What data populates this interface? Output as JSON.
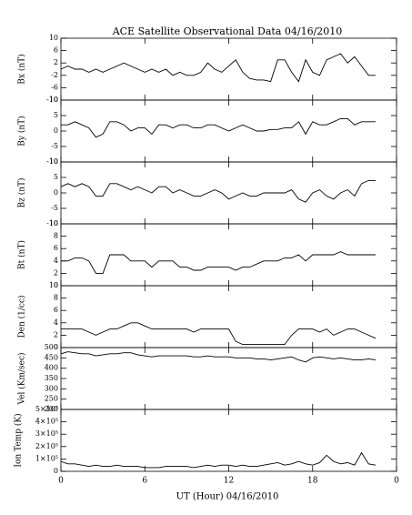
{
  "chart_data": [
    {
      "type": "line",
      "title": "ACE Satellite Observational Data   04/16/2010",
      "ylabel": "Bx (nT)",
      "color": "#000000",
      "x": [
        0,
        0.5,
        1,
        1.5,
        2,
        2.5,
        3,
        3.5,
        4,
        4.5,
        5,
        5.5,
        6,
        6.5,
        7,
        7.5,
        8,
        8.5,
        9,
        9.5,
        10,
        10.5,
        11,
        11.5,
        12,
        12.5,
        13,
        13.5,
        14,
        14.5,
        15,
        15.5,
        16,
        16.5,
        17,
        17.5,
        18,
        18.5,
        19,
        19.5,
        20,
        20.5,
        21,
        21.5,
        22,
        22.5
      ],
      "values": [
        0,
        1,
        0,
        0,
        -1,
        0,
        -1,
        0,
        1,
        2,
        1,
        0,
        -1,
        0,
        -1,
        0,
        -2,
        -1,
        -2,
        -2,
        -1,
        2,
        0,
        -1,
        1,
        3,
        -1,
        -3,
        -3.5,
        -3.5,
        -4,
        3,
        3,
        -1,
        -4,
        3,
        -1,
        -2,
        3,
        4,
        5,
        2,
        4,
        1,
        -2,
        -2
      ],
      "xlim": [
        0,
        24
      ],
      "xticks": [
        0,
        6,
        12,
        18,
        {
          "value": 24,
          "label": "0"
        }
      ],
      "ylim": [
        -10,
        10
      ],
      "yticks": [
        -10,
        -6,
        -2,
        2,
        6,
        10
      ]
    },
    {
      "type": "line",
      "ylabel": "By (nT)",
      "color": "#000000",
      "x": [
        0,
        0.5,
        1,
        1.5,
        2,
        2.5,
        3,
        3.5,
        4,
        4.5,
        5,
        5.5,
        6,
        6.5,
        7,
        7.5,
        8,
        8.5,
        9,
        9.5,
        10,
        10.5,
        11,
        11.5,
        12,
        12.5,
        13,
        13.5,
        14,
        14.5,
        15,
        15.5,
        16,
        16.5,
        17,
        17.5,
        18,
        18.5,
        19,
        19.5,
        20,
        20.5,
        21,
        21.5,
        22,
        22.5
      ],
      "values": [
        2,
        2,
        3,
        2,
        1,
        -2,
        -1,
        3,
        3,
        2,
        0,
        1,
        1,
        -1,
        2,
        2,
        1,
        2,
        2,
        1,
        1,
        2,
        2,
        1,
        0,
        1,
        2,
        1,
        0,
        0,
        0.5,
        0.5,
        1,
        1,
        3,
        -1,
        3,
        2,
        2,
        3,
        4,
        4,
        2,
        3,
        3,
        3
      ],
      "xlim": [
        0,
        24
      ],
      "xticks": [
        0,
        6,
        12,
        18,
        {
          "value": 24,
          "label": "0"
        }
      ],
      "ylim": [
        -10,
        10
      ],
      "yticks": [
        -10,
        -5,
        0,
        5,
        10
      ]
    },
    {
      "type": "line",
      "ylabel": "Bz (nT)",
      "color": "#000000",
      "x": [
        0,
        0.5,
        1,
        1.5,
        2,
        2.5,
        3,
        3.5,
        4,
        4.5,
        5,
        5.5,
        6,
        6.5,
        7,
        7.5,
        8,
        8.5,
        9,
        9.5,
        10,
        10.5,
        11,
        11.5,
        12,
        12.5,
        13,
        13.5,
        14,
        14.5,
        15,
        15.5,
        16,
        16.5,
        17,
        17.5,
        18,
        18.5,
        19,
        19.5,
        20,
        20.5,
        21,
        21.5,
        22,
        22.5
      ],
      "values": [
        2,
        3,
        2,
        3,
        2,
        -1,
        -1,
        3,
        3,
        2,
        1,
        2,
        1,
        0,
        2,
        2,
        0,
        1,
        0,
        -1,
        -1,
        0,
        1,
        0,
        -2,
        -1,
        0,
        -1,
        -1,
        0,
        0,
        0,
        0,
        1,
        -2,
        -3,
        0,
        1,
        -1,
        -2,
        0,
        1,
        -1,
        3,
        4,
        4
      ],
      "xlim": [
        0,
        24
      ],
      "xticks": [
        0,
        6,
        12,
        18,
        {
          "value": 24,
          "label": "0"
        }
      ],
      "ylim": [
        -10,
        10
      ],
      "yticks": [
        -10,
        -5,
        0,
        5,
        10
      ]
    },
    {
      "type": "line",
      "ylabel": "Bt (nT)",
      "color": "#000000",
      "x": [
        0,
        0.5,
        1,
        1.5,
        2,
        2.5,
        3,
        3.5,
        4,
        4.5,
        5,
        5.5,
        6,
        6.5,
        7,
        7.5,
        8,
        8.5,
        9,
        9.5,
        10,
        10.5,
        11,
        11.5,
        12,
        12.5,
        13,
        13.5,
        14,
        14.5,
        15,
        15.5,
        16,
        16.5,
        17,
        17.5,
        18,
        18.5,
        19,
        19.5,
        20,
        20.5,
        21,
        21.5,
        22,
        22.5
      ],
      "values": [
        4,
        4,
        4.5,
        4.5,
        4,
        2,
        2,
        5,
        5,
        5,
        4,
        4,
        4,
        3,
        4,
        4,
        4,
        3,
        3,
        2.5,
        2.5,
        3,
        3,
        3,
        3,
        2.5,
        3,
        3,
        3.5,
        4,
        4,
        4,
        4.5,
        4.5,
        5,
        4,
        5,
        5,
        5,
        5,
        5.5,
        5,
        5,
        5,
        5,
        5
      ],
      "xlim": [
        0,
        24
      ],
      "xticks": [
        0,
        6,
        12,
        18,
        {
          "value": 24,
          "label": "0"
        }
      ],
      "ylim": [
        0,
        10
      ],
      "yticks": [
        0,
        2,
        4,
        6,
        8,
        10
      ]
    },
    {
      "type": "line",
      "ylabel": "Den (1/cc)",
      "color": "#000000",
      "x": [
        0,
        0.5,
        1,
        1.5,
        2,
        2.5,
        3,
        3.5,
        4,
        4.5,
        5,
        5.5,
        6,
        6.5,
        7,
        7.5,
        8,
        8.5,
        9,
        9.5,
        10,
        10.5,
        11,
        11.5,
        12,
        12.5,
        13,
        13.5,
        14,
        14.5,
        15,
        15.5,
        16,
        16.5,
        17,
        17.5,
        18,
        18.5,
        19,
        19.5,
        20,
        20.5,
        21,
        21.5,
        22,
        22.5
      ],
      "values": [
        3,
        3,
        3,
        3,
        2.5,
        2,
        2.5,
        3,
        3,
        3.5,
        4,
        4,
        3.5,
        3,
        3,
        3,
        3,
        3,
        3,
        2.5,
        3,
        3,
        3,
        3,
        3,
        1,
        0.5,
        0.5,
        0.5,
        0.5,
        0.5,
        0.5,
        0.5,
        2,
        3,
        3,
        3,
        2.5,
        3,
        2,
        2.5,
        3,
        3,
        2.5,
        2,
        1.5
      ],
      "xlim": [
        0,
        24
      ],
      "xticks": [
        0,
        6,
        12,
        18,
        {
          "value": 24,
          "label": "0"
        }
      ],
      "ylim": [
        0,
        10
      ],
      "yticks": [
        0,
        2,
        4,
        6,
        8,
        10
      ]
    },
    {
      "type": "line",
      "ylabel": "Vel (Km/sec)",
      "color": "#000000",
      "x": [
        0,
        0.5,
        1,
        1.5,
        2,
        2.5,
        3,
        3.5,
        4,
        4.5,
        5,
        5.5,
        6,
        6.5,
        7,
        7.5,
        8,
        8.5,
        9,
        9.5,
        10,
        10.5,
        11,
        11.5,
        12,
        12.5,
        13,
        13.5,
        14,
        14.5,
        15,
        15.5,
        16,
        16.5,
        17,
        17.5,
        18,
        18.5,
        19,
        19.5,
        20,
        20.5,
        21,
        21.5,
        22,
        22.5
      ],
      "values": [
        470,
        480,
        475,
        470,
        470,
        460,
        465,
        470,
        470,
        475,
        475,
        465,
        460,
        455,
        460,
        460,
        460,
        460,
        460,
        455,
        455,
        460,
        455,
        455,
        455,
        450,
        450,
        450,
        445,
        445,
        440,
        445,
        450,
        455,
        440,
        430,
        450,
        455,
        450,
        445,
        450,
        445,
        440,
        440,
        445,
        440
      ],
      "xlim": [
        0,
        24
      ],
      "xticks": [
        0,
        6,
        12,
        18,
        {
          "value": 24,
          "label": "0"
        }
      ],
      "ylim": [
        200,
        500
      ],
      "yticks": [
        200,
        250,
        300,
        350,
        400,
        450,
        500
      ]
    },
    {
      "type": "line",
      "ylabel": "Ion Temp (K)",
      "xlabel": "UT (Hour)   04/16/2010",
      "color": "#000000",
      "x": [
        0,
        0.5,
        1,
        1.5,
        2,
        2.5,
        3,
        3.5,
        4,
        4.5,
        5,
        5.5,
        6,
        6.5,
        7,
        7.5,
        8,
        8.5,
        9,
        9.5,
        10,
        10.5,
        11,
        11.5,
        12,
        12.5,
        13,
        13.5,
        14,
        14.5,
        15,
        15.5,
        16,
        16.5,
        17,
        17.5,
        18,
        18.5,
        19,
        19.5,
        20,
        20.5,
        21,
        21.5,
        22,
        22.5
      ],
      "values": [
        80000,
        60000,
        60000,
        50000,
        40000,
        50000,
        40000,
        40000,
        50000,
        40000,
        40000,
        40000,
        30000,
        30000,
        30000,
        40000,
        40000,
        40000,
        40000,
        30000,
        40000,
        50000,
        40000,
        50000,
        50000,
        40000,
        50000,
        40000,
        40000,
        50000,
        60000,
        70000,
        50000,
        60000,
        80000,
        60000,
        50000,
        70000,
        130000,
        80000,
        60000,
        70000,
        50000,
        150000,
        60000,
        50000
      ],
      "xlim": [
        0,
        24
      ],
      "xticks": [
        0,
        6,
        12,
        18,
        {
          "value": 24,
          "label": "0"
        }
      ],
      "ylim": [
        0,
        500000
      ],
      "yticks": [
        0,
        {
          "value": 100000,
          "label": "1×10⁵"
        },
        {
          "value": 200000,
          "label": "2×10⁵"
        },
        {
          "value": 300000,
          "label": "3×10⁵"
        },
        {
          "value": 400000,
          "label": "4×10⁵"
        },
        {
          "value": 500000,
          "label": "5×10⁵"
        }
      ]
    }
  ]
}
